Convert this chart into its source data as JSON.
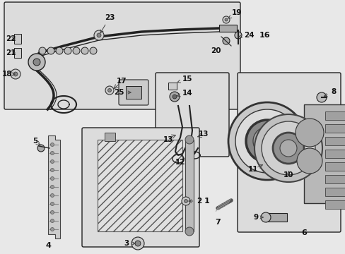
{
  "bg_color": "#e8e8e8",
  "line_color": "#222222",
  "box_bg": "#dcdcdc",
  "white_bg": "#f5f5f5",
  "fig_width": 4.89,
  "fig_height": 3.6,
  "dpi": 100
}
